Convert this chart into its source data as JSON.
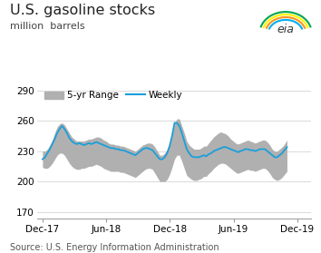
{
  "title": "U.S. gasoline stocks",
  "subtitle": "million  barrels",
  "source": "Source: U.S. Energy Information Administration",
  "legend_range": "5-yr Range",
  "legend_weekly": "Weekly",
  "yticks": [
    170,
    200,
    230,
    260,
    290
  ],
  "ylim": [
    163,
    297
  ],
  "xtick_labels": [
    "Dec-17",
    "Jun-18",
    "Dec-18",
    "Jun-19",
    "Dec-19"
  ],
  "title_fontsize": 11.5,
  "subtitle_fontsize": 8,
  "source_fontsize": 7,
  "legend_fontsize": 7.5,
  "tick_fontsize": 7.5,
  "weekly_color": "#1a9fdb",
  "range_color": "#b0b0b0",
  "background_color": "#ffffff",
  "weekly_data": [
    222,
    224,
    228,
    232,
    237,
    242,
    248,
    252,
    255,
    252,
    248,
    243,
    240,
    238,
    237,
    238,
    237,
    236,
    237,
    238,
    237,
    238,
    239,
    238,
    237,
    236,
    235,
    234,
    233,
    233,
    232,
    232,
    231,
    231,
    230,
    229,
    228,
    227,
    226,
    228,
    230,
    232,
    233,
    233,
    232,
    231,
    228,
    225,
    222,
    222,
    224,
    228,
    235,
    245,
    258,
    258,
    255,
    248,
    240,
    232,
    228,
    225,
    224,
    224,
    224,
    225,
    226,
    225,
    227,
    228,
    230,
    231,
    232,
    233,
    234,
    234,
    233,
    232,
    231,
    230,
    229,
    230,
    231,
    232,
    232,
    231,
    231,
    230,
    231,
    232,
    232,
    232,
    230,
    228,
    226,
    224,
    224,
    226,
    228,
    231,
    234
  ],
  "range_low": [
    214,
    213,
    213,
    215,
    218,
    222,
    226,
    228,
    228,
    226,
    222,
    218,
    215,
    213,
    212,
    212,
    213,
    213,
    214,
    215,
    215,
    216,
    217,
    216,
    215,
    213,
    212,
    211,
    210,
    210,
    210,
    210,
    209,
    209,
    208,
    207,
    206,
    205,
    204,
    206,
    208,
    210,
    212,
    213,
    213,
    212,
    208,
    204,
    200,
    200,
    200,
    202,
    207,
    214,
    222,
    226,
    226,
    220,
    213,
    206,
    204,
    202,
    201,
    201,
    202,
    203,
    205,
    205,
    208,
    210,
    213,
    215,
    217,
    218,
    218,
    217,
    215,
    213,
    211,
    209,
    208,
    209,
    210,
    211,
    212,
    211,
    211,
    210,
    211,
    212,
    213,
    213,
    211,
    208,
    204,
    202,
    201,
    202,
    204,
    207,
    210
  ],
  "range_high": [
    230,
    230,
    232,
    236,
    241,
    248,
    254,
    257,
    258,
    256,
    252,
    248,
    244,
    242,
    240,
    240,
    240,
    240,
    241,
    242,
    242,
    243,
    244,
    244,
    243,
    241,
    240,
    238,
    237,
    237,
    236,
    236,
    235,
    235,
    234,
    233,
    232,
    231,
    230,
    232,
    234,
    236,
    237,
    238,
    238,
    237,
    234,
    230,
    226,
    226,
    228,
    232,
    238,
    248,
    258,
    262,
    262,
    255,
    248,
    240,
    236,
    234,
    232,
    232,
    232,
    233,
    235,
    235,
    238,
    241,
    244,
    246,
    248,
    249,
    248,
    247,
    245,
    242,
    240,
    238,
    237,
    238,
    239,
    240,
    241,
    240,
    239,
    238,
    239,
    240,
    241,
    241,
    239,
    236,
    232,
    230,
    230,
    232,
    234,
    237,
    241
  ],
  "xlim_start_days": -16,
  "xlim_end_days": 770
}
